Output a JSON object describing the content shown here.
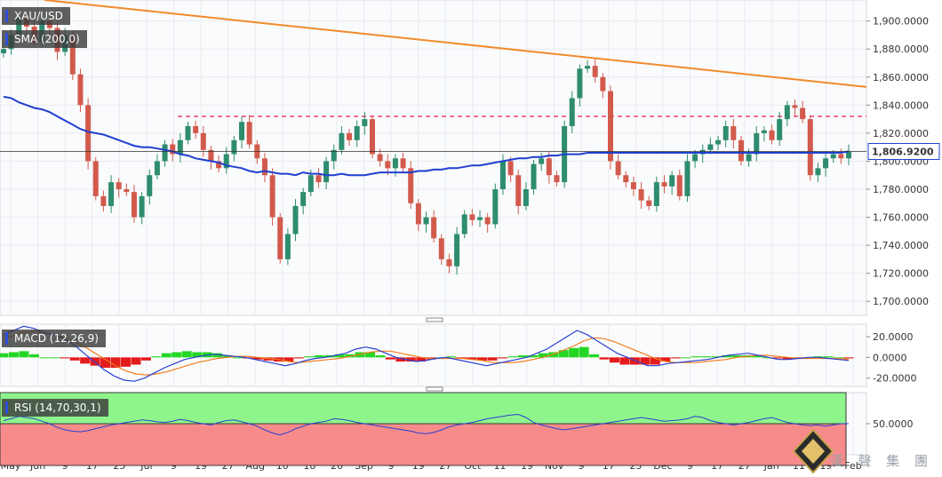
{
  "chart_data": [
    {
      "type": "candlestick",
      "symbol": "XAU/USD",
      "indicator_label": "SMA (200,0)",
      "last_price_label": "1,806.9200",
      "ylim": [
        1690,
        1915
      ],
      "yticks": [
        {
          "value": 1700,
          "label": "1,700.0000"
        },
        {
          "value": 1720,
          "label": "1,720.0000"
        },
        {
          "value": 1740,
          "label": "1,740.0000"
        },
        {
          "value": 1760,
          "label": "1,760.0000"
        },
        {
          "value": 1780,
          "label": "1,780.0000"
        },
        {
          "value": 1800,
          "label": "1,800.0000"
        },
        {
          "value": 1820,
          "label": "1,820.0000"
        },
        {
          "value": 1840,
          "label": "1,840.0000"
        },
        {
          "value": 1860,
          "label": "1,860.0000"
        },
        {
          "value": 1880,
          "label": "1,880.0000"
        },
        {
          "value": 1900,
          "label": "1,900.0000"
        }
      ],
      "close_path": [
        1880,
        1890,
        1902,
        1896,
        1885,
        1900,
        1895,
        1878,
        1890,
        1862,
        1840,
        1800,
        1775,
        1768,
        1785,
        1780,
        1778,
        1760,
        1775,
        1790,
        1800,
        1812,
        1805,
        1815,
        1825,
        1820,
        1808,
        1800,
        1795,
        1805,
        1815,
        1828,
        1812,
        1802,
        1790,
        1760,
        1730,
        1748,
        1768,
        1778,
        1790,
        1785,
        1800,
        1808,
        1820,
        1815,
        1825,
        1830,
        1805,
        1800,
        1795,
        1802,
        1795,
        1770,
        1755,
        1760,
        1745,
        1730,
        1725,
        1748,
        1762,
        1758,
        1760,
        1755,
        1780,
        1800,
        1790,
        1768,
        1780,
        1798,
        1802,
        1790,
        1785,
        1825,
        1845,
        1866,
        1868,
        1860,
        1850,
        1800,
        1790,
        1785,
        1780,
        1772,
        1768,
        1785,
        1782,
        1790,
        1775,
        1800,
        1805,
        1808,
        1812,
        1815,
        1825,
        1815,
        1800,
        1805,
        1820,
        1822,
        1815,
        1830,
        1840,
        1838,
        1830,
        1790,
        1795,
        1802,
        1805,
        1802,
        1807
      ],
      "sma_path": [
        1846,
        1845,
        1842,
        1840,
        1838,
        1837,
        1835,
        1832,
        1829,
        1826,
        1823,
        1821,
        1820,
        1819,
        1817,
        1815,
        1813,
        1811,
        1810,
        1810,
        1809,
        1808,
        1807,
        1805,
        1804,
        1802,
        1801,
        1800,
        1799,
        1797,
        1796,
        1795,
        1793,
        1792,
        1793,
        1792,
        1791,
        1791,
        1790,
        1792,
        1791,
        1791,
        1790,
        1790,
        1791,
        1790,
        1790,
        1790,
        1791,
        1792,
        1792,
        1792,
        1792,
        1792,
        1793,
        1793,
        1794,
        1794,
        1795,
        1795,
        1796,
        1797,
        1797,
        1798,
        1799,
        1800,
        1801,
        1802,
        1802,
        1803,
        1803,
        1804,
        1804,
        1805,
        1805,
        1805,
        1806,
        1806,
        1806,
        1806,
        1806,
        1806,
        1806,
        1806,
        1806,
        1806,
        1806,
        1806,
        1806,
        1806,
        1806,
        1806,
        1806,
        1806,
        1806,
        1806,
        1806,
        1806,
        1806,
        1806,
        1806,
        1806,
        1806,
        1806,
        1806,
        1806,
        1806,
        1806,
        1806,
        1806,
        1807
      ],
      "trendline": {
        "from": 1915,
        "to": 1853
      },
      "resistance_level": 1832,
      "last_price": 1806.92
    },
    {
      "type": "line",
      "indicator_label": "MACD (12,26,9)",
      "ylim": [
        -28,
        32
      ],
      "yticks": [
        {
          "value": 20,
          "label": "20.0000"
        },
        {
          "value": 0,
          "label": "0.0000"
        },
        {
          "value": -20,
          "label": "-20.0000"
        }
      ],
      "macd_path": [
        22,
        26,
        30,
        28,
        24,
        22,
        18,
        12,
        4,
        -4,
        -12,
        -18,
        -22,
        -23,
        -20,
        -15,
        -10,
        -6,
        -2,
        0,
        2,
        3,
        2,
        1,
        0,
        -2,
        -4,
        -6,
        -8,
        -6,
        -3,
        -1,
        0,
        2,
        4,
        8,
        10,
        8,
        4,
        0,
        -2,
        -4,
        -3,
        -1,
        0,
        -2,
        -4,
        -6,
        -8,
        -6,
        -4,
        -2,
        0,
        4,
        8,
        14,
        20,
        26,
        22,
        16,
        10,
        4,
        0,
        -4,
        -8,
        -8,
        -6,
        -5,
        -4,
        -3,
        -2,
        0,
        2,
        3,
        4,
        2,
        0,
        -2,
        -2,
        -1,
        0,
        0,
        -1,
        -2,
        -3
      ],
      "signal_path": [
        18,
        21,
        24,
        25,
        24,
        22,
        19,
        15,
        10,
        4,
        -2,
        -8,
        -13,
        -16,
        -17,
        -16,
        -14,
        -11,
        -8,
        -5,
        -3,
        -1,
        0,
        1,
        1,
        0,
        -1,
        -2,
        -4,
        -5,
        -4,
        -3,
        -2,
        -1,
        1,
        3,
        5,
        6,
        6,
        4,
        2,
        0,
        -1,
        -1,
        -1,
        -1,
        -2,
        -3,
        -5,
        -5,
        -5,
        -4,
        -2,
        0,
        3,
        7,
        11,
        16,
        19,
        18,
        15,
        11,
        7,
        3,
        -1,
        -4,
        -5,
        -5,
        -5,
        -4,
        -3,
        -2,
        0,
        1,
        2,
        2,
        1,
        0,
        -1,
        -1,
        -1,
        -1,
        -1,
        -2
      ],
      "hist_path": [
        4,
        5,
        6,
        3,
        0,
        0,
        -1,
        -3,
        -6,
        -8,
        -10,
        -10,
        -9,
        -7,
        -3,
        1,
        4,
        5,
        6,
        5,
        5,
        4,
        2,
        0,
        -1,
        -2,
        -3,
        -4,
        -4,
        -1,
        1,
        2,
        2,
        3,
        3,
        5,
        5,
        2,
        -2,
        -4,
        -4,
        -4,
        -2,
        0,
        1,
        -1,
        -2,
        -3,
        -3,
        -1,
        1,
        2,
        2,
        4,
        5,
        7,
        9,
        10,
        3,
        -2,
        -5,
        -7,
        -7,
        -7,
        -7,
        -4,
        -1,
        0,
        1,
        1,
        1,
        2,
        2,
        2,
        2,
        0,
        -1,
        -2,
        -1,
        0,
        1,
        1,
        0,
        -1
      ],
      "color_macd": "#2a3fd1",
      "color_signal": "#f07d1e",
      "color_pos": "#24d624",
      "color_neg": "#e41b1b"
    },
    {
      "type": "line",
      "indicator_label": "RSI (14,70,30,1)",
      "ylim": [
        0,
        100
      ],
      "yticks": [
        {
          "value": 50,
          "label": "50.0000"
        }
      ],
      "upper": 70,
      "lower": 30,
      "rsi_path": [
        55,
        58,
        62,
        60,
        58,
        54,
        50,
        44,
        40,
        38,
        37,
        39,
        42,
        45,
        48,
        50,
        52,
        54,
        56,
        55,
        53,
        52,
        54,
        57,
        55,
        52,
        50,
        48,
        52,
        55,
        56,
        53,
        50,
        46,
        40,
        35,
        32,
        36,
        42,
        46,
        50,
        52,
        54,
        58,
        57,
        55,
        52,
        50,
        48,
        46,
        44,
        42,
        40,
        38,
        35,
        34,
        36,
        40,
        45,
        48,
        50,
        52,
        55,
        58,
        60,
        62,
        64,
        65,
        60,
        52,
        48,
        45,
        42,
        40,
        42,
        44,
        46,
        48,
        50,
        52,
        54,
        56,
        58,
        60,
        58,
        56,
        54,
        55,
        56,
        58,
        62,
        60,
        55,
        52,
        50,
        48,
        50,
        52,
        55,
        58,
        60,
        56,
        52,
        50,
        48,
        47,
        48,
        46,
        48,
        50,
        50
      ],
      "color_upper_zone": "#8ef58c",
      "color_lower_zone": "#f78b8b",
      "color_line": "#2a3fd1"
    }
  ],
  "x_axis_labels": [
    "May",
    "Jun",
    "9",
    "17",
    "25",
    "Jul",
    "9",
    "19",
    "27",
    "Aug",
    "10",
    "18",
    "26",
    "Sep",
    "9",
    "19",
    "27",
    "Oct",
    "11",
    "19",
    "Nov",
    "9",
    "17",
    "25",
    "Dec",
    "9",
    "17",
    "27",
    "Jan",
    "11",
    "19",
    "Feb"
  ],
  "publisher_label": "漢 聲 集 團",
  "colors": {
    "bull": "#2e8c6f",
    "bear": "#d25a4d",
    "sma": "#1f3fd0",
    "trend": "#f08b2a",
    "resistance": "#f06e9a",
    "grid": "#e9ebef"
  }
}
